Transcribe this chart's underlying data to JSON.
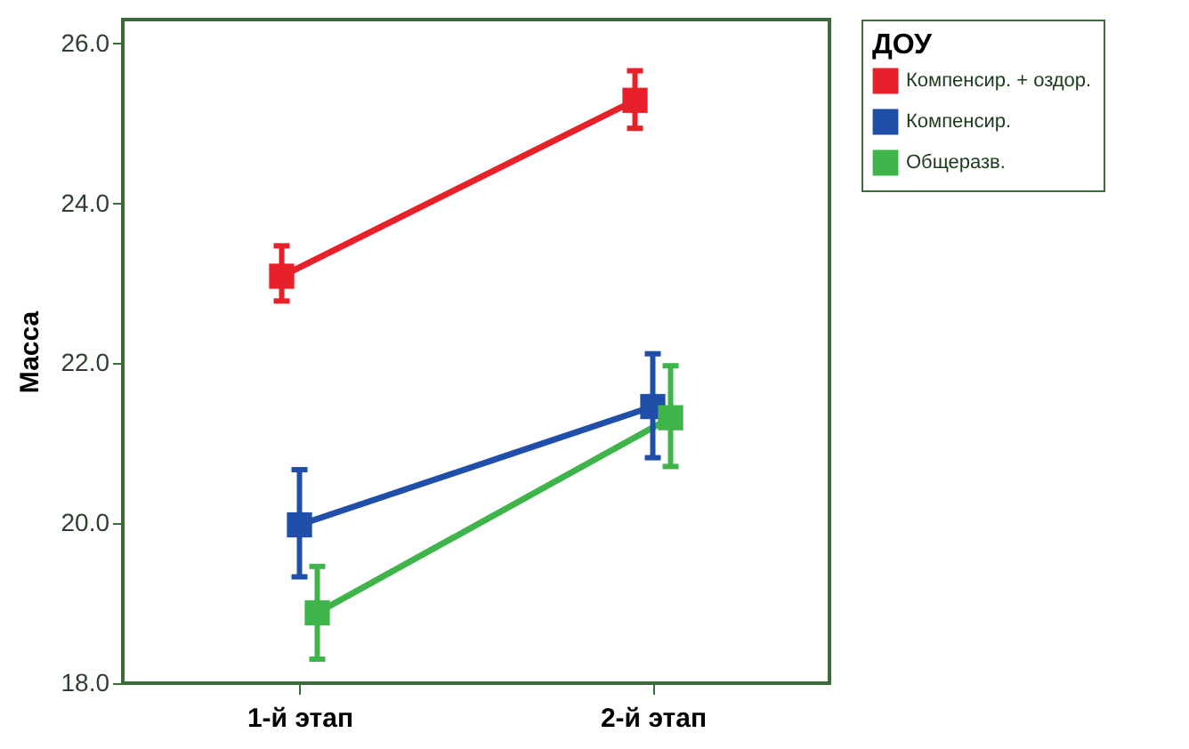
{
  "chart_data": {
    "type": "line",
    "ylabel": "Масса",
    "legend_title": "ДОУ",
    "categories": [
      "1-й этап",
      "2-й этап"
    ],
    "series": [
      {
        "name": "Компенсир. + оздор.",
        "color": "#e8202a",
        "values": [
          23.09,
          25.29
        ],
        "errors": [
          [
            22.78,
            23.47
          ],
          [
            24.94,
            25.66
          ]
        ]
      },
      {
        "name": "Компенсир.",
        "color": "#1f4fa8",
        "values": [
          19.98,
          21.46
        ],
        "errors": [
          [
            19.33,
            20.67
          ],
          [
            20.82,
            22.12
          ]
        ]
      },
      {
        "name": "Общеразв.",
        "color": "#3fb44a",
        "values": [
          18.88,
          21.32
        ],
        "errors": [
          [
            18.3,
            19.46
          ],
          [
            20.71,
            21.97
          ]
        ]
      }
    ],
    "ylim": [
      18,
      26.3
    ],
    "yticks": [
      {
        "value": 18,
        "label": "18.0"
      },
      {
        "value": 20,
        "label": "20.0"
      },
      {
        "value": 22,
        "label": "22.0"
      },
      {
        "value": 24,
        "label": "24.0"
      },
      {
        "value": 26,
        "label": "26.0"
      }
    ],
    "marker": "square",
    "legend": "top right",
    "grid": false
  }
}
